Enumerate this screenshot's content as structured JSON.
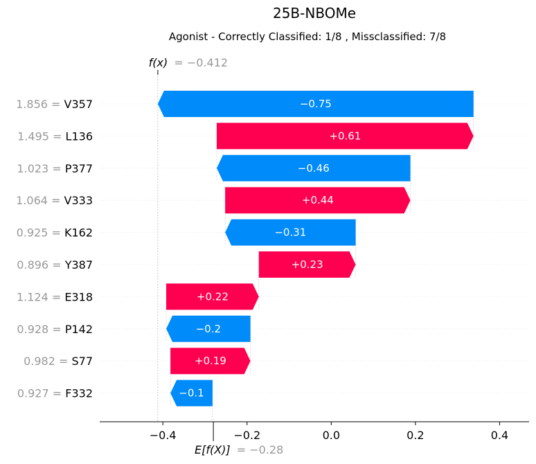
{
  "chart_data": {
    "type": "waterfall",
    "title": "25B-NBOMe",
    "subtitle": "Agonist - Correctly Classified: 1/8 , Missclassified: 7/8",
    "fx_label": "f(x)",
    "fx_value_text": "= −0.412",
    "fx": -0.412,
    "efx_label": "E[f(X)]",
    "efx_value_text": "= −0.28",
    "base_value": -0.28,
    "xlim": [
      -0.55,
      0.47
    ],
    "xticks": [
      -0.4,
      -0.2,
      0.0,
      0.2,
      0.4
    ],
    "xtick_labels": [
      "−0.4",
      "−0.2",
      "0.0",
      "0.2",
      "0.4"
    ],
    "colors": {
      "positive": "#ff0051",
      "negative": "#008bfb"
    },
    "features": [
      {
        "value_text": "1.856 =",
        "name": "V357",
        "shap": -0.75,
        "label": "−0.75"
      },
      {
        "value_text": "1.495 =",
        "name": "L136",
        "shap": 0.61,
        "label": "+0.61"
      },
      {
        "value_text": "1.023 =",
        "name": "P377",
        "shap": -0.46,
        "label": "−0.46"
      },
      {
        "value_text": "1.064 =",
        "name": "V333",
        "shap": 0.44,
        "label": "+0.44"
      },
      {
        "value_text": "0.925 =",
        "name": "K162",
        "shap": -0.31,
        "label": "−0.31"
      },
      {
        "value_text": "0.896 =",
        "name": "Y387",
        "shap": 0.23,
        "label": "+0.23"
      },
      {
        "value_text": "1.124 =",
        "name": "E318",
        "shap": 0.22,
        "label": "+0.22"
      },
      {
        "value_text": "0.928 =",
        "name": "P142",
        "shap": -0.2,
        "label": "−0.2"
      },
      {
        "value_text": "0.982 =",
        "name": "S77",
        "shap": 0.19,
        "label": "+0.19"
      },
      {
        "value_text": "0.927 =",
        "name": "F332",
        "shap": -0.1,
        "label": "−0.1"
      }
    ]
  }
}
